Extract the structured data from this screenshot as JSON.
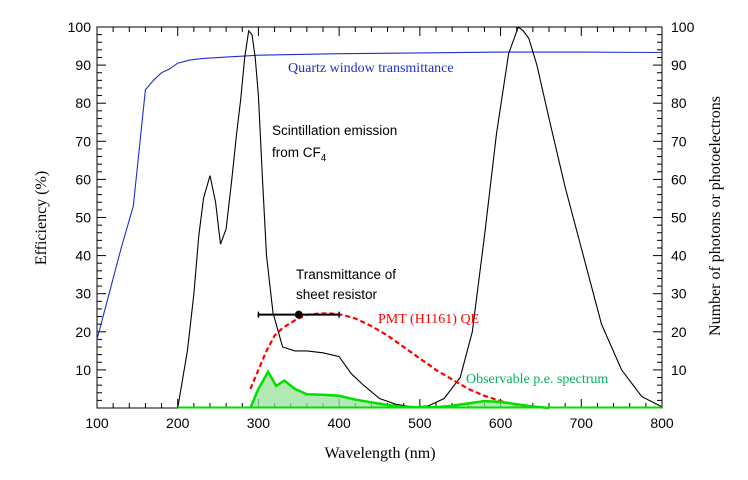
{
  "chart_data": {
    "type": "line",
    "title": "",
    "xlabel": "Wavelength (nm)",
    "ylabel": "Efficiency (%)",
    "y2label": "Number of photons or photoelectrons",
    "xlim": [
      100,
      800
    ],
    "ylim": [
      0,
      100
    ],
    "y2lim": [
      0,
      100
    ],
    "x_ticks": [
      "100",
      "200",
      "300",
      "400",
      "500",
      "600",
      "700",
      "800"
    ],
    "y_ticks": [
      "100",
      "90",
      "80",
      "70",
      "60",
      "50",
      "40",
      "30",
      "20",
      "10"
    ],
    "y2_ticks": [
      "100",
      "90",
      "80",
      "70",
      "60",
      "50",
      "40",
      "30",
      "20",
      "10"
    ],
    "grid": false,
    "colors": {
      "quartz": "#1f2fd0",
      "emission": "#000000",
      "qe": "#ff0000",
      "spectrum": "#00e000",
      "spectrum_fill": "#9be09b",
      "spectrum_label": "#00b060"
    },
    "series": [
      {
        "name": "Quartz window transmittance",
        "axis": "left",
        "style": "solid",
        "x": [
          100,
          115,
          130,
          145,
          160,
          170,
          180,
          190,
          200,
          215,
          230,
          260,
          300,
          400,
          500,
          600,
          700,
          800
        ],
        "y": [
          18,
          30,
          42,
          53,
          83.5,
          86,
          88,
          89,
          90.5,
          91.3,
          91.7,
          92.1,
          92.6,
          93.0,
          93.2,
          93.4,
          93.4,
          93.3
        ]
      },
      {
        "name": "Scintillation emission from CF4",
        "axis": "right",
        "style": "solid",
        "x": [
          200,
          212,
          220,
          226,
          232,
          240,
          247,
          253,
          260,
          267,
          273,
          278,
          283,
          288,
          292,
          296,
          300,
          305,
          310,
          318,
          330,
          345,
          360,
          380,
          400,
          415,
          430,
          450,
          470,
          490,
          510,
          530,
          550,
          565,
          580,
          595,
          610,
          622,
          628,
          635,
          645,
          660,
          680,
          700,
          725,
          750,
          775,
          800
        ],
        "y": [
          0,
          15,
          30,
          45,
          55,
          61,
          54,
          43,
          47,
          60,
          72,
          81,
          92,
          99,
          98,
          92,
          82,
          60,
          40,
          25,
          16,
          15,
          15,
          14.5,
          13.5,
          9,
          6,
          2.5,
          1,
          0.3,
          0.5,
          2.5,
          8,
          20,
          45,
          72,
          93,
          100,
          99,
          97,
          90,
          76,
          58,
          42,
          22,
          10,
          3,
          0.3
        ]
      },
      {
        "name": "PMT (H1161) QE",
        "axis": "left",
        "style": "dashed",
        "x": [
          290,
          300,
          310,
          320,
          330,
          345,
          360,
          375,
          390,
          405,
          420,
          440,
          460,
          480,
          500,
          520,
          540,
          560,
          580,
          600,
          620,
          640
        ],
        "y": [
          5,
          10,
          15,
          19,
          21,
          23,
          24.5,
          24.8,
          24.8,
          24.4,
          23.5,
          21.5,
          19,
          16,
          13,
          10,
          7.5,
          5,
          3.2,
          1.8,
          0.8,
          0.3
        ]
      },
      {
        "name": "Observable p.e. spectrum",
        "axis": "right",
        "style": "filled",
        "x": [
          290,
          300,
          312,
          322,
          332,
          345,
          360,
          380,
          400,
          420,
          440,
          460,
          480,
          500,
          520,
          540,
          560,
          580,
          600,
          620,
          640,
          660
        ],
        "y": [
          0,
          5,
          9.5,
          5.8,
          7.2,
          5,
          3.6,
          3.5,
          3.2,
          2.2,
          1.5,
          0.8,
          0.3,
          0.2,
          0.2,
          0.6,
          1.2,
          1.8,
          1.6,
          1.0,
          0.4,
          0
        ]
      }
    ],
    "error_bar": {
      "label": "Transmittance of sheet resistor",
      "x": 350,
      "y": 24.5,
      "xerr_low": 300,
      "xerr_high": 400
    },
    "annotations": {
      "quartz_label": "Quartz window transmittance",
      "emission_line1": "Scintillation emission",
      "emission_line2_pre": "from CF",
      "emission_line2_sub": "4",
      "resistor_line1": "Transmittance of",
      "resistor_line2": "sheet resistor",
      "qe_label": "PMT (H1161) QE",
      "spectrum_label": "Observable p.e. spectrum"
    }
  }
}
